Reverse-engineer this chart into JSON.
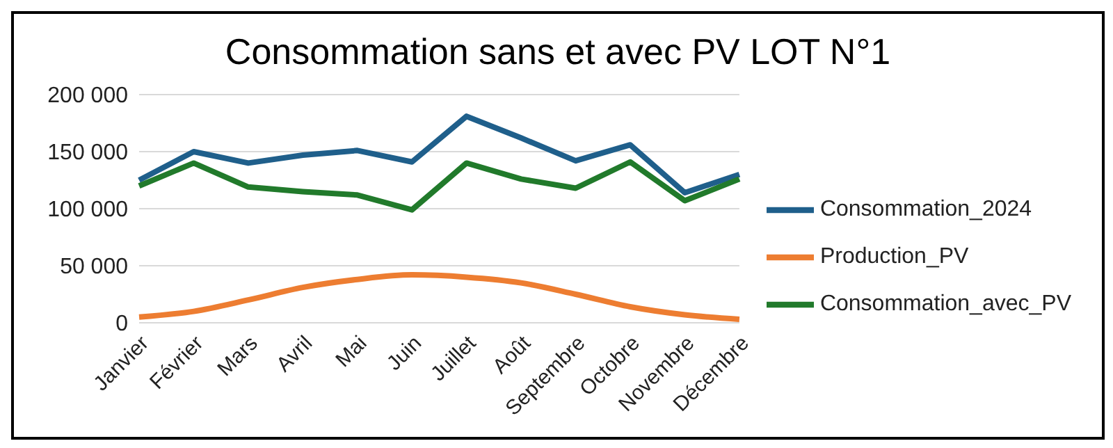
{
  "chart_data": {
    "type": "line",
    "title": "Consommation sans et avec PV LOT N°1",
    "categories": [
      "Janvier",
      "Février",
      "Mars",
      "Avril",
      "Mai",
      "Juin",
      "Juillet",
      "Août",
      "Septembre",
      "Octobre",
      "Novembre",
      "Décembre"
    ],
    "series": [
      {
        "name": "Consommation_2024",
        "color": "#1f5f8b",
        "values": [
          125000,
          150000,
          140000,
          147000,
          151000,
          141000,
          181000,
          162000,
          142000,
          156000,
          114000,
          130000
        ]
      },
      {
        "name": "Production_PV",
        "color": "#ed7d31",
        "values": [
          5000,
          10000,
          20000,
          31000,
          38000,
          42000,
          40000,
          35000,
          25000,
          14000,
          7000,
          3000
        ]
      },
      {
        "name": "Consommation_avec_PV",
        "color": "#217a2b",
        "values": [
          120000,
          140000,
          119000,
          115000,
          112000,
          99000,
          140000,
          126000,
          118000,
          141000,
          107000,
          126000
        ]
      }
    ],
    "ylim": [
      0,
      200000
    ],
    "yticks": [
      0,
      {
        "value": 50000,
        "label": "50 000"
      },
      {
        "value": 100000,
        "label": "100 000"
      },
      {
        "value": 150000,
        "label": "150 000"
      },
      {
        "value": 200000,
        "label": "200 000"
      }
    ],
    "grid": "y",
    "legend": "right",
    "marker": "none",
    "line_style": "solid"
  }
}
